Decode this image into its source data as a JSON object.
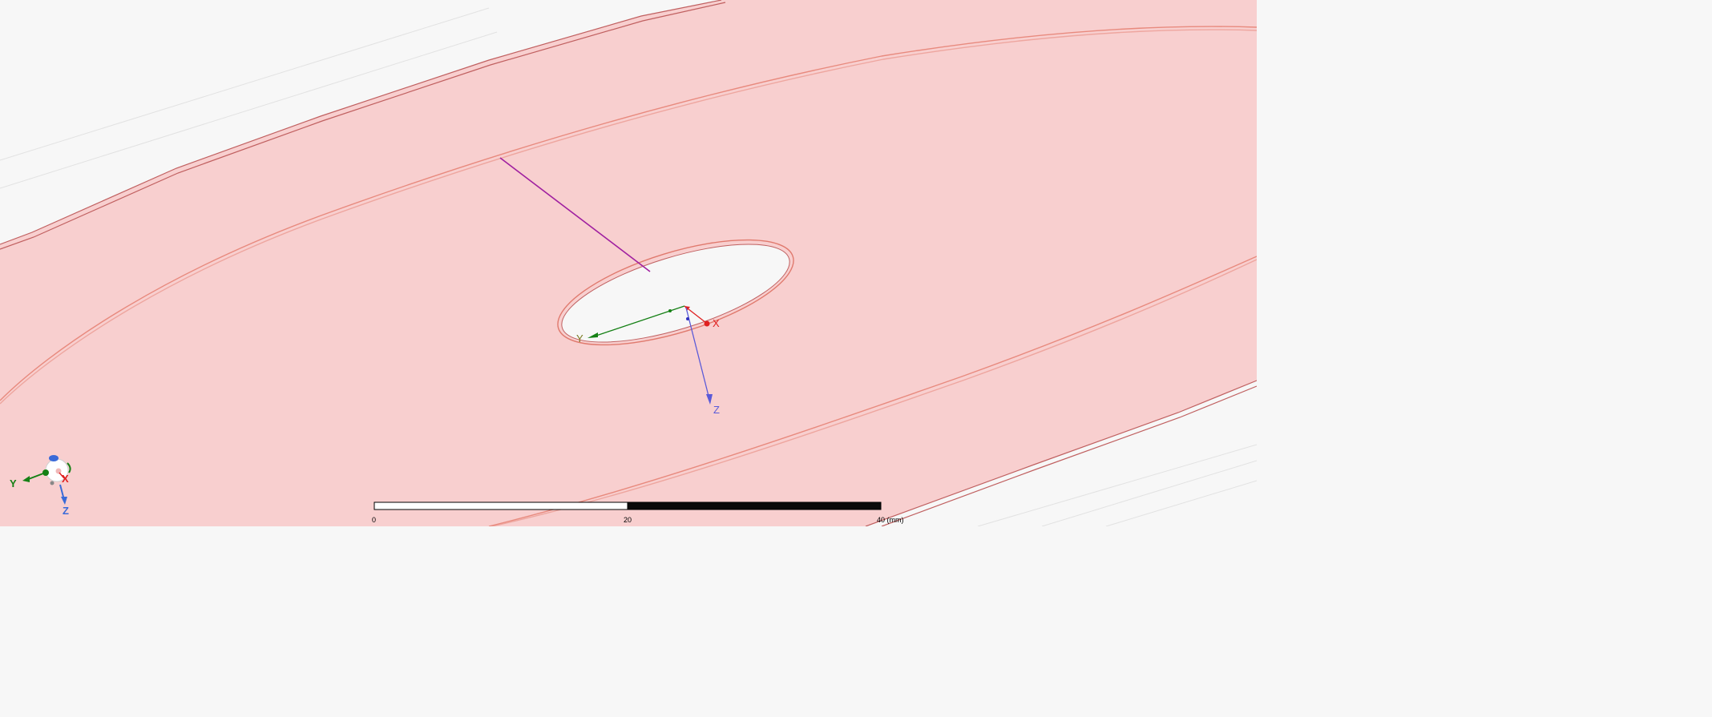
{
  "viewport": {
    "background_color": "#f7f7f7",
    "surface_fill_color": "#f8cfcf",
    "edge_color": "#e88a7e",
    "probe_line_color": "#a020a0"
  },
  "local_triad": {
    "x_label": "X",
    "y_label": "Y",
    "z_label": "Z",
    "x_color": "#e02020",
    "y_color": "#158015",
    "z_color": "#5a5ad8"
  },
  "global_triad": {
    "x_label": "X",
    "y_label": "Y",
    "z_label": "Z"
  },
  "scale_bar": {
    "tick_0": "0",
    "tick_20": "20",
    "tick_40": "40 (mm)"
  }
}
